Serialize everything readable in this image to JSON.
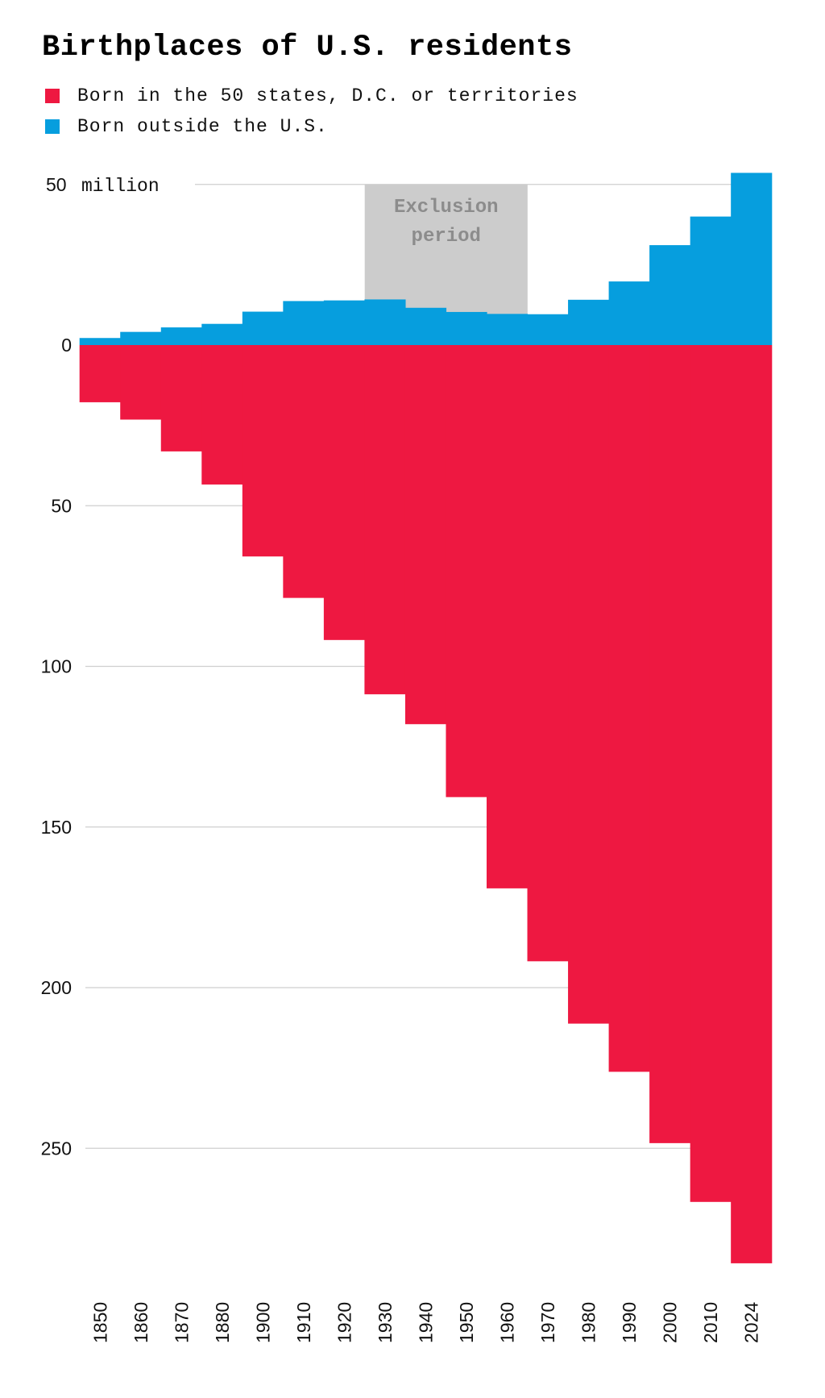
{
  "chart_data": {
    "type": "bar",
    "title": "Birthplaces of U.S. residents",
    "categories": [
      "1850",
      "1860",
      "1870",
      "1880",
      "1900",
      "1910",
      "1920",
      "1930",
      "1940",
      "1950",
      "1960",
      "1970",
      "1980",
      "1990",
      "2000",
      "2010",
      "2024"
    ],
    "series": [
      {
        "name": "Born in the 50 states, D.C. or territories",
        "color": "#EE1841",
        "direction": "down",
        "values": [
          17.8,
          23.2,
          33.1,
          43.4,
          65.8,
          78.7,
          91.8,
          108.7,
          118.0,
          140.7,
          169.1,
          191.8,
          211.2,
          226.2,
          248.4,
          266.7,
          285.8
        ]
      },
      {
        "name": "Born outside the U.S.",
        "color": "#069EDE",
        "direction": "up",
        "values": [
          2.2,
          4.1,
          5.5,
          6.6,
          10.4,
          13.7,
          13.9,
          14.2,
          11.6,
          10.3,
          9.7,
          9.6,
          14.1,
          19.8,
          31.1,
          40.0,
          53.6
        ]
      }
    ],
    "y_ticks_up": [
      {
        "value": 50,
        "label": "50",
        "unit": "million"
      }
    ],
    "y_ticks_down": [
      {
        "value": 0,
        "label": "0"
      },
      {
        "value": 50,
        "label": "50"
      },
      {
        "value": 100,
        "label": "100"
      },
      {
        "value": 150,
        "label": "150"
      },
      {
        "value": 200,
        "label": "200"
      },
      {
        "value": 250,
        "label": "250"
      }
    ],
    "annotation": {
      "text_line1": "Exclusion",
      "text_line2": "period",
      "from": "1930",
      "to": "1960",
      "color": "#CCCCCC"
    },
    "grid": true,
    "legend_position": "top-left"
  }
}
